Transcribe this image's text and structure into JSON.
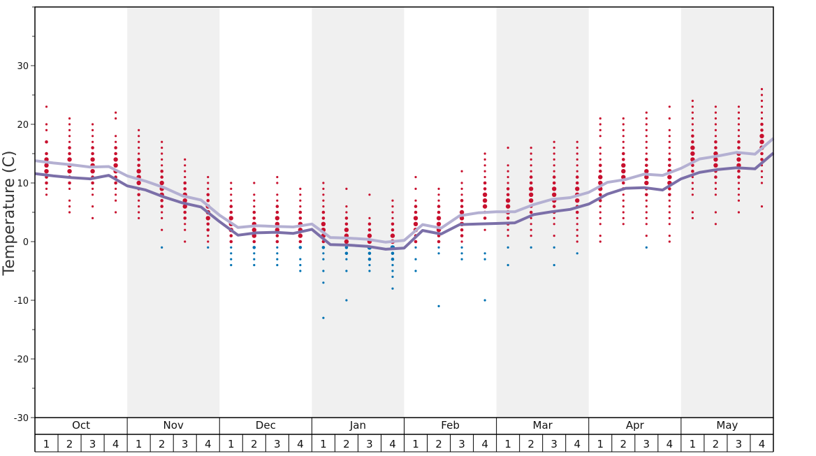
{
  "chart_data": {
    "type": "scatter",
    "ylabel": "Temperature (C)",
    "ylim": [
      -30,
      40
    ],
    "yticks": [
      -30,
      -20,
      -10,
      0,
      10,
      20,
      30
    ],
    "grid": false,
    "months": [
      "Oct",
      "Nov",
      "Dec",
      "Jan",
      "Feb",
      "Mar",
      "Apr",
      "May"
    ],
    "week_labels": [
      "1",
      "2",
      "3",
      "4"
    ],
    "alternate_month_shading": true,
    "colors": {
      "above_zero_points": "#c8102e",
      "below_zero_points": "#0072b2",
      "upper_line": "#b4b0d2",
      "lower_line": "#7b6fa8",
      "month_shade": "#f0f0f0"
    },
    "lines": [
      {
        "id": "upper",
        "values": [
          13.8,
          13.4,
          13.1,
          12.7,
          12.8,
          11.2,
          10.3,
          9.2,
          7.8,
          7.1,
          4.5,
          2.4,
          2.7,
          2.6,
          2.5,
          3.0,
          0.7,
          0.6,
          0.4,
          -0.1,
          0.2,
          2.9,
          2.3,
          4.4,
          4.9,
          5.1,
          5.1,
          6.3,
          7.2,
          7.5,
          8.4,
          10.1,
          10.6,
          11.5,
          11.3,
          12.5,
          14.1,
          14.6,
          15.2,
          14.9,
          17.6
        ]
      },
      {
        "id": "lower",
        "values": [
          11.6,
          11.2,
          10.9,
          10.7,
          11.3,
          9.5,
          8.8,
          7.6,
          6.6,
          5.9,
          3.4,
          1.1,
          1.5,
          1.6,
          1.4,
          2.1,
          -0.5,
          -0.6,
          -0.8,
          -1.3,
          -1.1,
          1.9,
          1.3,
          2.9,
          3.0,
          3.1,
          3.2,
          4.6,
          5.1,
          5.5,
          6.4,
          8.1,
          9.1,
          9.2,
          8.8,
          10.7,
          11.8,
          12.3,
          12.6,
          12.4,
          15.1
        ]
      }
    ],
    "scatter": [
      {
        "week": 1,
        "temps": [
          23,
          20,
          19,
          17,
          15,
          14,
          13,
          12,
          11,
          10,
          9,
          8
        ]
      },
      {
        "week": 2,
        "temps": [
          21,
          20,
          19,
          18,
          17,
          16,
          15,
          14,
          13,
          12,
          11,
          10,
          9,
          7,
          6,
          5
        ]
      },
      {
        "week": 3,
        "temps": [
          20,
          19,
          18,
          17,
          16,
          15,
          14,
          13,
          12,
          11,
          10,
          9,
          8,
          6,
          4
        ]
      },
      {
        "week": 4,
        "temps": [
          22,
          21,
          18,
          17,
          16,
          15,
          14,
          13,
          12,
          11,
          10,
          9,
          8,
          7,
          5
        ]
      },
      {
        "week": 5,
        "temps": [
          19,
          18,
          17,
          16,
          15,
          14,
          13,
          12,
          11,
          10,
          9,
          8,
          7,
          6,
          5,
          4
        ]
      },
      {
        "week": 6,
        "temps": [
          17,
          16,
          15,
          14,
          13,
          12,
          11,
          10,
          9,
          8,
          7,
          6,
          5,
          4,
          2,
          -1
        ]
      },
      {
        "week": 7,
        "temps": [
          14,
          13,
          12,
          11,
          10,
          9,
          8,
          7,
          6,
          5,
          4,
          3,
          2,
          0
        ]
      },
      {
        "week": 8,
        "temps": [
          11,
          10,
          9,
          8,
          7,
          6,
          5,
          4,
          3,
          2,
          1,
          0,
          -1
        ]
      },
      {
        "week": 9,
        "temps": [
          10,
          9,
          8,
          7,
          6,
          5,
          4,
          3,
          2,
          1,
          0,
          -1,
          -2,
          -3,
          -4
        ]
      },
      {
        "week": 10,
        "temps": [
          10,
          8,
          7,
          6,
          5,
          4,
          3,
          2,
          1,
          0,
          -1,
          -2,
          -3,
          -4
        ]
      },
      {
        "week": 11,
        "temps": [
          11,
          10,
          8,
          7,
          6,
          5,
          4,
          3,
          2,
          1,
          0,
          -1,
          -2,
          -3,
          -4
        ]
      },
      {
        "week": 12,
        "temps": [
          9,
          8,
          7,
          6,
          5,
          4,
          3,
          2,
          1,
          0,
          -1,
          -3,
          -4,
          -5
        ]
      },
      {
        "week": 13,
        "temps": [
          10,
          9,
          8,
          7,
          6,
          5,
          4,
          3,
          2,
          1,
          0,
          -1,
          -2,
          -3,
          -5,
          -7,
          -13
        ]
      },
      {
        "week": 14,
        "temps": [
          9,
          6,
          5,
          4,
          3,
          2,
          1,
          0,
          -1,
          -2,
          -3,
          -5,
          -10
        ]
      },
      {
        "week": 15,
        "temps": [
          8,
          4,
          3,
          2,
          1,
          0,
          -1,
          -2,
          -3,
          -4,
          -5
        ]
      },
      {
        "week": 16,
        "temps": [
          7,
          6,
          5,
          4,
          3,
          2,
          1,
          0,
          -1,
          -2,
          -3,
          -4,
          -5,
          -6,
          -8
        ]
      },
      {
        "week": 17,
        "temps": [
          11,
          9,
          7,
          6,
          5,
          4,
          3,
          2,
          1,
          0,
          -1,
          -3,
          -5
        ]
      },
      {
        "week": 18,
        "temps": [
          9,
          8,
          7,
          6,
          5,
          4,
          3,
          2,
          1,
          0,
          -1,
          -2,
          -11
        ]
      },
      {
        "week": 19,
        "temps": [
          12,
          10,
          9,
          8,
          7,
          6,
          5,
          4,
          3,
          2,
          1,
          0,
          -1,
          -2,
          -3
        ]
      },
      {
        "week": 20,
        "temps": [
          15,
          14,
          13,
          12,
          11,
          10,
          9,
          8,
          7,
          6,
          5,
          4,
          3,
          2,
          -2,
          -3,
          -10
        ]
      },
      {
        "week": 21,
        "temps": [
          16,
          13,
          12,
          11,
          10,
          9,
          8,
          7,
          6,
          5,
          4,
          3,
          2,
          1,
          -1,
          -4
        ]
      },
      {
        "week": 22,
        "temps": [
          16,
          15,
          14,
          13,
          12,
          11,
          10,
          9,
          8,
          7,
          6,
          5,
          4,
          3,
          2,
          1,
          -1
        ]
      },
      {
        "week": 23,
        "temps": [
          17,
          16,
          15,
          14,
          13,
          12,
          11,
          10,
          9,
          8,
          7,
          6,
          5,
          4,
          3,
          1,
          -1,
          -4
        ]
      },
      {
        "week": 24,
        "temps": [
          17,
          16,
          15,
          14,
          13,
          12,
          11,
          10,
          9,
          8,
          7,
          6,
          5,
          4,
          3,
          2,
          1,
          0,
          -2
        ]
      },
      {
        "week": 25,
        "temps": [
          21,
          20,
          19,
          18,
          16,
          15,
          14,
          13,
          12,
          11,
          10,
          9,
          8,
          7,
          6,
          5,
          4,
          3,
          1,
          0
        ]
      },
      {
        "week": 26,
        "temps": [
          21,
          20,
          19,
          18,
          17,
          16,
          15,
          14,
          13,
          12,
          11,
          10,
          9,
          8,
          7,
          6,
          5,
          4,
          3
        ]
      },
      {
        "week": 27,
        "temps": [
          22,
          21,
          20,
          19,
          18,
          17,
          16,
          15,
          14,
          13,
          12,
          11,
          10,
          9,
          8,
          7,
          6,
          5,
          4,
          3,
          1,
          -1
        ]
      },
      {
        "week": 28,
        "temps": [
          23,
          21,
          19,
          18,
          17,
          16,
          15,
          14,
          13,
          12,
          11,
          10,
          9,
          8,
          7,
          6,
          5,
          4,
          3,
          1,
          0
        ]
      },
      {
        "week": 29,
        "temps": [
          24,
          23,
          22,
          21,
          20,
          19,
          18,
          17,
          16,
          15,
          14,
          13,
          12,
          11,
          10,
          9,
          8,
          5,
          4
        ]
      },
      {
        "week": 30,
        "temps": [
          23,
          22,
          21,
          20,
          19,
          18,
          17,
          16,
          15,
          14,
          13,
          12,
          11,
          10,
          9,
          8,
          5,
          3
        ]
      },
      {
        "week": 31,
        "temps": [
          23,
          22,
          21,
          20,
          19,
          18,
          17,
          16,
          15,
          14,
          13,
          12,
          11,
          10,
          9,
          8,
          7,
          5
        ]
      },
      {
        "week": 32,
        "temps": [
          26,
          25,
          24,
          23,
          22,
          21,
          20,
          19,
          18,
          17,
          16,
          15,
          14,
          13,
          12,
          11,
          10,
          6
        ]
      }
    ]
  }
}
